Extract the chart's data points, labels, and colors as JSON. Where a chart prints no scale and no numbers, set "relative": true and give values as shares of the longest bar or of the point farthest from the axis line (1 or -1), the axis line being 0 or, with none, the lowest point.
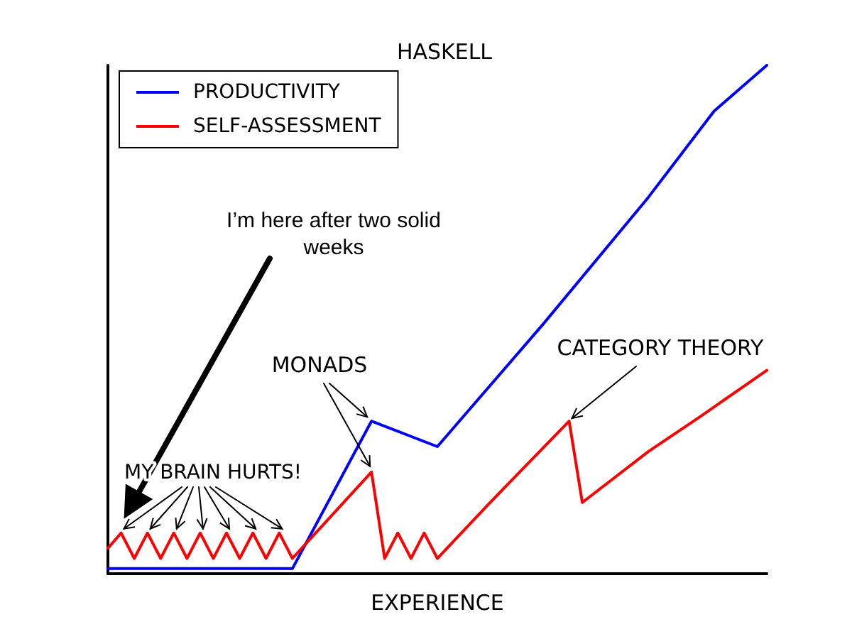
{
  "chart_data": {
    "type": "line",
    "title": "HASKELL",
    "xlabel": "EXPERIENCE",
    "relative": true,
    "legend": "top left",
    "marker": "none",
    "line_style": "solid",
    "grid": false,
    "categories": [
      null,
      null,
      null,
      null,
      null,
      null,
      null,
      null,
      null,
      null,
      null,
      null,
      null,
      null,
      null,
      null,
      null,
      null,
      null,
      null,
      null,
      null,
      null,
      null,
      null,
      null,
      null,
      null,
      null,
      null,
      null,
      null,
      null,
      null,
      null,
      null,
      null,
      null,
      null,
      null,
      null,
      null,
      null,
      null,
      null,
      null,
      null,
      null,
      null,
      null,
      null
    ],
    "series": [
      {
        "name": "PRODUCTIVITY",
        "color": "#0000ff",
        "values": [
          0.01,
          null,
          null,
          null,
          null,
          null,
          null,
          null,
          null,
          null,
          null,
          null,
          null,
          null,
          0.01,
          null,
          null,
          null,
          null,
          null,
          0.3,
          null,
          null,
          null,
          null,
          0.25,
          null,
          null,
          null,
          null,
          null,
          null,
          null,
          0.49,
          null,
          null,
          null,
          null,
          null,
          null,
          null,
          0.74,
          null,
          null,
          null,
          null,
          0.91,
          null,
          null,
          null,
          1
        ]
      },
      {
        "name": "SELF-ASSESSMENT",
        "color": "#ff0000",
        "values": [
          0.05,
          0.08,
          0.03,
          0.08,
          0.03,
          0.08,
          0.03,
          0.08,
          0.03,
          0.08,
          0.03,
          0.08,
          0.03,
          0.08,
          0.03,
          null,
          null,
          null,
          null,
          null,
          0.2,
          0.03,
          0.08,
          0.03,
          0.08,
          0.03,
          null,
          null,
          null,
          0.14,
          null,
          null,
          0.22,
          null,
          null,
          0.3,
          0.14,
          null,
          null,
          null,
          null,
          0.24,
          null,
          null,
          null,
          0.31,
          null,
          null,
          null,
          null,
          0.4
        ]
      }
    ],
    "annotations": [
      "I’m here after two solid\nweeks",
      "MY BRAIN HURTS!",
      "MONADS",
      "CATEGORY THEORY"
    ]
  }
}
